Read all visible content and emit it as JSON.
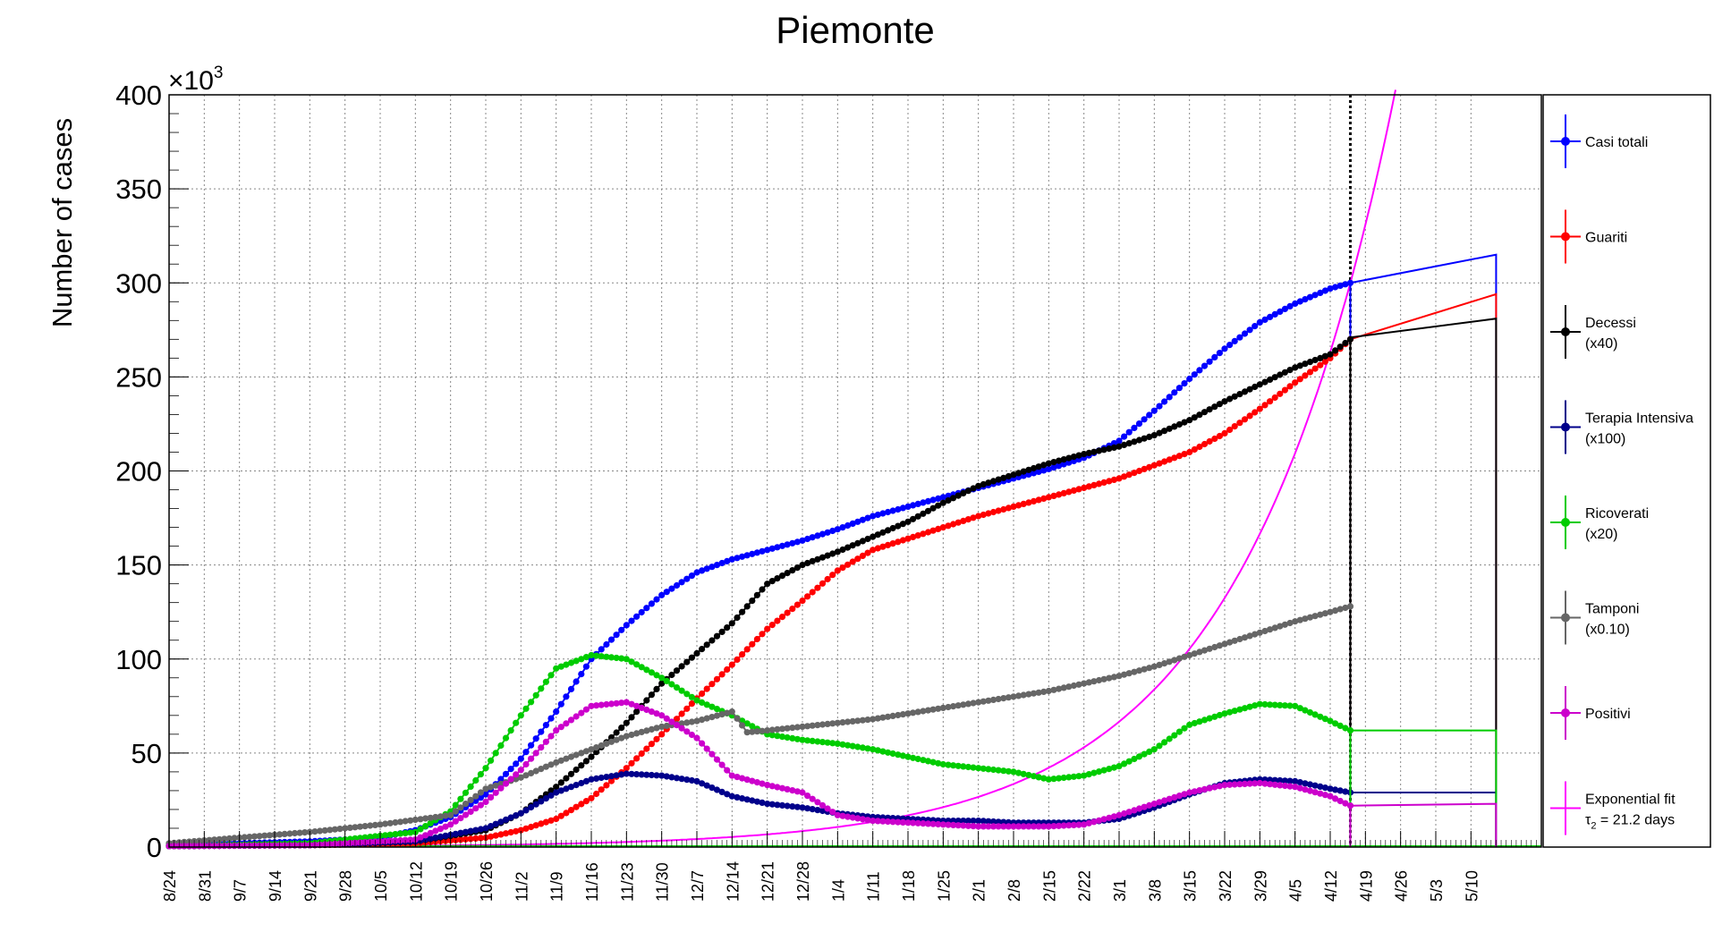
{
  "chart_data": {
    "type": "line",
    "title": "Piemonte",
    "ylabel": "Number of cases",
    "xlabel": "",
    "y_multiplier": "×10",
    "y_multiplier_exp": "3",
    "ylim": [
      0,
      400
    ],
    "y_ticks": [
      0,
      50,
      100,
      150,
      200,
      250,
      300,
      350,
      400
    ],
    "x_day_range": [
      0,
      273
    ],
    "x_ticks": [
      "8/24",
      "8/31",
      "9/7",
      "9/14",
      "9/21",
      "9/28",
      "10/5",
      "10/12",
      "10/19",
      "10/26",
      "11/2",
      "11/9",
      "11/16",
      "11/23",
      "11/30",
      "12/7",
      "12/14",
      "12/21",
      "12/28",
      "1/4",
      "1/11",
      "1/18",
      "1/25",
      "2/1",
      "2/8",
      "2/15",
      "2/22",
      "3/1",
      "3/8",
      "3/15",
      "3/22",
      "3/29",
      "4/5",
      "4/12",
      "4/19",
      "4/26",
      "5/3",
      "5/10"
    ],
    "grid": true,
    "legend_placement": "right",
    "vline_date": "4/16",
    "series": [
      {
        "name": "Casi totali",
        "color": "#0000ff",
        "x": [
          "8/24",
          "9/7",
          "9/21",
          "10/5",
          "10/12",
          "10/19",
          "10/26",
          "11/2",
          "11/9",
          "11/16",
          "11/23",
          "11/30",
          "12/7",
          "12/14",
          "12/21",
          "12/28",
          "1/4",
          "1/11",
          "1/18",
          "1/25",
          "2/1",
          "2/8",
          "2/15",
          "2/22",
          "3/1",
          "3/8",
          "3/15",
          "3/22",
          "3/29",
          "4/5",
          "4/12",
          "4/16"
        ],
        "y": [
          1,
          2,
          3,
          5,
          9,
          16,
          28,
          47,
          72,
          100,
          118,
          134,
          146,
          153,
          158,
          163,
          169,
          176,
          181,
          186,
          191,
          196,
          201,
          207,
          216,
          232,
          249,
          265,
          279,
          289,
          297,
          300
        ],
        "projection": {
          "x": [
            "4/16",
            "5/15"
          ],
          "y": [
            300,
            315
          ]
        }
      },
      {
        "name": "Guariti",
        "color": "#ff0000",
        "x": [
          "8/24",
          "9/21",
          "10/12",
          "10/26",
          "11/2",
          "11/9",
          "11/16",
          "11/23",
          "11/30",
          "12/7",
          "12/14",
          "12/21",
          "12/28",
          "1/4",
          "1/11",
          "1/18",
          "1/25",
          "2/1",
          "2/8",
          "2/15",
          "2/22",
          "3/1",
          "3/8",
          "3/15",
          "3/22",
          "3/29",
          "4/5",
          "4/12",
          "4/16"
        ],
        "y": [
          0.5,
          1,
          2,
          5,
          9,
          15,
          26,
          42,
          60,
          79,
          97,
          116,
          131,
          147,
          158,
          164,
          170,
          176,
          181,
          186,
          191,
          196,
          203,
          210,
          220,
          233,
          247,
          260,
          270
        ],
        "projection": {
          "x": [
            "4/16",
            "5/15"
          ],
          "y": [
            270,
            294
          ]
        }
      },
      {
        "name": "Decessi",
        "name2": "(x40)",
        "color": "#000000",
        "x": [
          "8/24",
          "9/21",
          "10/12",
          "10/26",
          "11/2",
          "11/9",
          "11/16",
          "11/23",
          "11/30",
          "12/7",
          "12/14",
          "12/21",
          "12/28",
          "1/4",
          "1/11",
          "1/18",
          "1/25",
          "2/1",
          "2/8",
          "2/15",
          "2/22",
          "3/1",
          "3/8",
          "3/15",
          "3/22",
          "3/29",
          "4/5",
          "4/12",
          "4/16"
        ],
        "y": [
          0.5,
          1,
          3,
          9,
          18,
          32,
          48,
          66,
          87,
          103,
          119,
          140,
          150,
          157,
          165,
          173,
          183,
          192,
          198,
          204,
          209,
          213,
          219,
          227,
          237,
          246,
          255,
          262,
          270
        ],
        "projection": {
          "x": [
            "4/16",
            "5/15"
          ],
          "y": [
            271,
            281
          ]
        }
      },
      {
        "name": "Terapia Intensiva",
        "name2": "(x100)",
        "color": "#00008b",
        "x": [
          "8/24",
          "9/21",
          "10/12",
          "10/26",
          "11/2",
          "11/9",
          "11/16",
          "11/23",
          "11/30",
          "12/7",
          "12/14",
          "12/21",
          "12/28",
          "1/4",
          "1/11",
          "1/18",
          "1/25",
          "2/1",
          "2/8",
          "2/15",
          "2/22",
          "3/1",
          "3/8",
          "3/15",
          "3/22",
          "3/29",
          "4/5",
          "4/12",
          "4/16"
        ],
        "y": [
          0.5,
          1,
          3,
          10,
          18,
          29,
          36,
          39,
          38,
          35,
          27,
          23,
          21,
          18,
          16,
          15,
          14,
          14,
          13,
          13,
          13,
          15,
          21,
          28,
          34,
          36,
          35,
          31,
          29
        ],
        "projection": {
          "x": [
            "4/16",
            "5/15"
          ],
          "y": [
            29,
            29
          ]
        }
      },
      {
        "name": "Ricoverati",
        "name2": "(x20)",
        "color": "#00cc00",
        "x": [
          "8/24",
          "9/21",
          "10/12",
          "10/19",
          "10/26",
          "11/2",
          "11/9",
          "11/16",
          "11/23",
          "11/30",
          "12/7",
          "12/14",
          "12/21",
          "12/28",
          "1/4",
          "1/11",
          "1/18",
          "1/25",
          "2/1",
          "2/8",
          "2/15",
          "2/22",
          "3/1",
          "3/8",
          "3/15",
          "3/22",
          "3/29",
          "4/5",
          "4/12",
          "4/16"
        ],
        "y": [
          0.5,
          2,
          8,
          19,
          42,
          70,
          95,
          102,
          100,
          90,
          78,
          70,
          60,
          57,
          55,
          52,
          48,
          44,
          42,
          40,
          36,
          38,
          43,
          52,
          65,
          71,
          76,
          75,
          67,
          62
        ],
        "projection": {
          "x": [
            "4/16",
            "5/15"
          ],
          "y": [
            62,
            62
          ]
        }
      },
      {
        "name": "Tamponi",
        "name2": "(x0.10)",
        "color": "#666666",
        "x": [
          "8/24",
          "9/7",
          "9/21",
          "10/5",
          "10/19",
          "10/26",
          "11/2",
          "11/9",
          "11/16",
          "11/23",
          "11/30",
          "12/7",
          "12/14",
          "12/17",
          "12/21",
          "12/28",
          "1/4",
          "1/11",
          "1/18",
          "1/25",
          "2/1",
          "2/8",
          "2/15",
          "2/22",
          "3/1",
          "3/8",
          "3/15",
          "3/22",
          "3/29",
          "4/5",
          "4/12",
          "4/16"
        ],
        "y": [
          2,
          5,
          8,
          12,
          17,
          31,
          37,
          45,
          52,
          59,
          64,
          67,
          72,
          61,
          62,
          64,
          66,
          68,
          71,
          74,
          77,
          80,
          83,
          87,
          91,
          96,
          102,
          108,
          114,
          120,
          125,
          128
        ]
      },
      {
        "name": "Positivi",
        "color": "#cc00cc",
        "x": [
          "8/24",
          "9/21",
          "10/12",
          "10/19",
          "10/26",
          "11/2",
          "11/9",
          "11/16",
          "11/23",
          "11/30",
          "12/7",
          "12/14",
          "12/21",
          "12/28",
          "1/4",
          "1/11",
          "1/18",
          "1/25",
          "2/1",
          "2/8",
          "2/15",
          "2/22",
          "3/1",
          "3/8",
          "3/15",
          "3/22",
          "3/29",
          "4/5",
          "4/12",
          "4/16"
        ],
        "y": [
          0.5,
          1,
          4,
          12,
          24,
          41,
          62,
          75,
          77,
          70,
          58,
          38,
          33,
          29,
          17,
          14,
          13,
          12,
          11,
          11,
          11,
          12,
          17,
          23,
          29,
          33,
          34,
          32,
          27,
          22
        ],
        "projection": {
          "x": [
            "4/16",
            "5/15"
          ],
          "y": [
            22,
            23
          ]
        }
      },
      {
        "name": "Exponential fit",
        "name2": "τ",
        "name2_sub": "2",
        "name2_rest": " = 21.2 days",
        "color": "#ff00ff",
        "fit": {
          "tau_days": 21.2,
          "value_at_4_16": 300
        }
      }
    ]
  }
}
